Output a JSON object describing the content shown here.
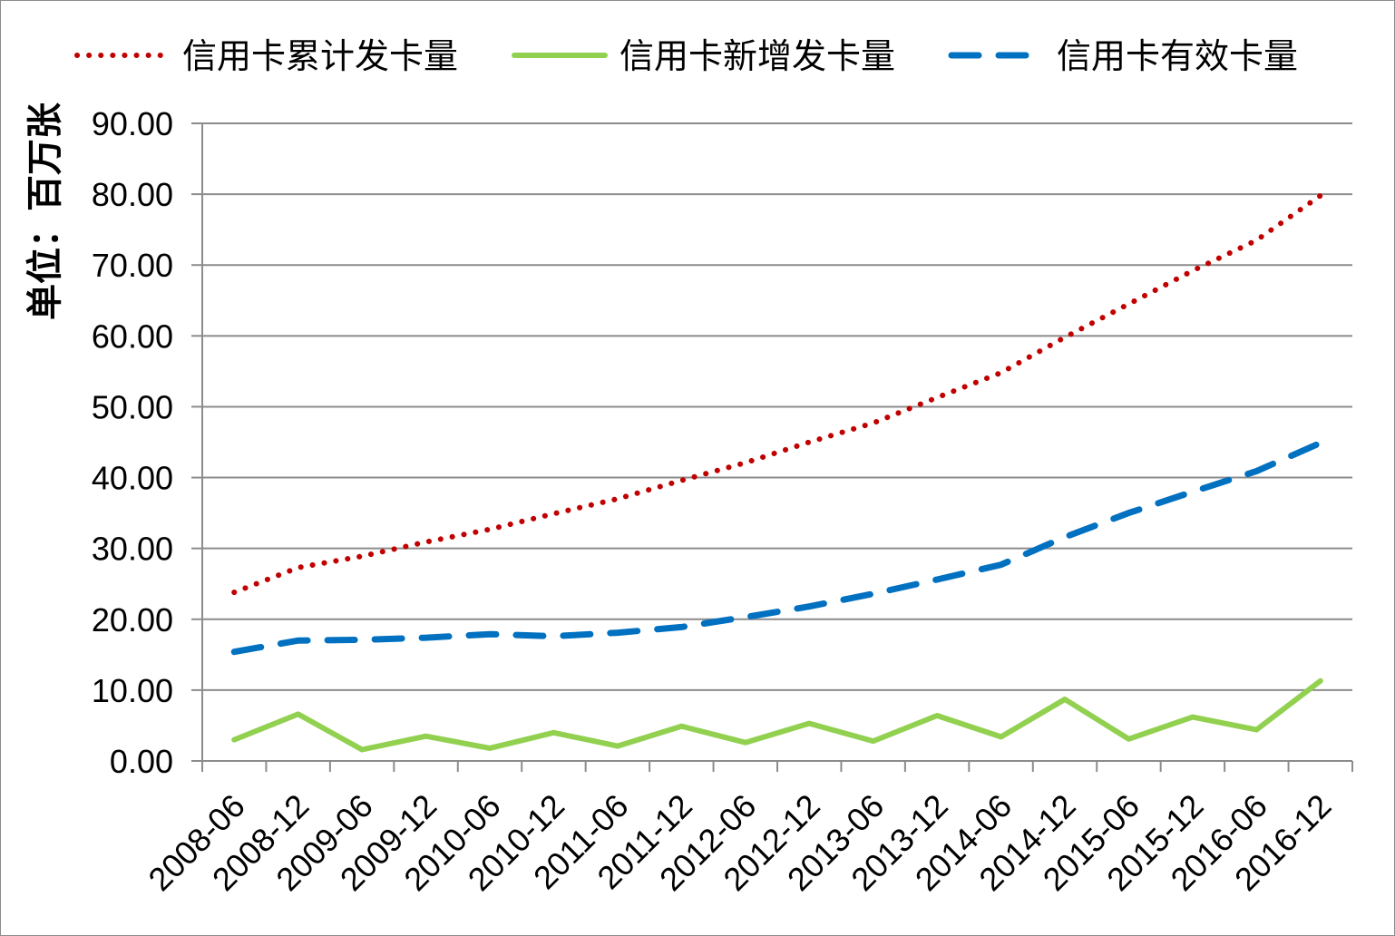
{
  "chart_data": {
    "type": "line",
    "title": "",
    "xlabel": "",
    "ylabel": "单位：百万张",
    "ylim": [
      0,
      90
    ],
    "ytick_step": 10,
    "ytick_decimals": 2,
    "grid": true,
    "legend_position": "top",
    "categories": [
      "2008-06",
      "2008-12",
      "2009-06",
      "2009-12",
      "2010-06",
      "2010-12",
      "2011-06",
      "2011-12",
      "2012-06",
      "2012-12",
      "2013-06",
      "2013-12",
      "2014-06",
      "2014-12",
      "2015-06",
      "2015-12",
      "2016-06",
      "2016-12"
    ],
    "series": [
      {
        "name": "信用卡累计发卡量",
        "style": "dotted",
        "color": "#c00000",
        "values": [
          23.8,
          27.3,
          28.9,
          30.9,
          32.7,
          34.9,
          37.0,
          39.6,
          42.1,
          45.0,
          47.7,
          51.3,
          54.8,
          59.8,
          64.5,
          69.2,
          73.5,
          79.8
        ]
      },
      {
        "name": "信用卡新增发卡量",
        "style": "solid",
        "color": "#92d050",
        "values": [
          3.0,
          6.6,
          1.6,
          3.5,
          1.8,
          4.0,
          2.1,
          4.9,
          2.6,
          5.3,
          2.8,
          6.4,
          3.4,
          8.7,
          3.1,
          6.2,
          4.4,
          11.3
        ]
      },
      {
        "name": "信用卡有效卡量",
        "style": "dashed",
        "color": "#0070c0",
        "values": [
          15.4,
          17.0,
          17.1,
          17.4,
          17.9,
          17.6,
          18.1,
          18.9,
          20.3,
          21.8,
          23.6,
          25.6,
          27.7,
          31.6,
          35.0,
          38.0,
          40.9,
          44.9
        ]
      }
    ]
  }
}
